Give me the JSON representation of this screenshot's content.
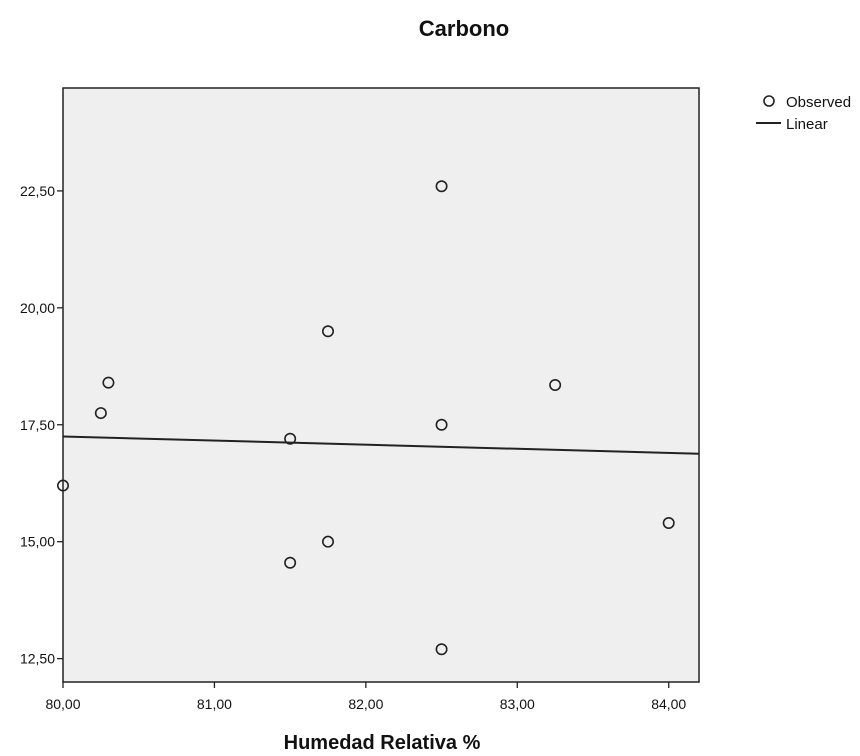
{
  "chart_data": {
    "type": "scatter",
    "title": "Carbono",
    "xlabel": "Humedad Relativa %",
    "ylabel": "",
    "xlim": [
      80.0,
      84.2
    ],
    "ylim": [
      12.0,
      24.7
    ],
    "x_ticks": [
      80,
      81,
      82,
      83,
      84
    ],
    "x_tick_labels": [
      "80,00",
      "81,00",
      "82,00",
      "83,00",
      "84,00"
    ],
    "y_ticks": [
      12.5,
      15,
      17.5,
      20,
      22.5
    ],
    "y_tick_labels": [
      "12,50",
      "15,00",
      "17,50",
      "20,00",
      "22,50"
    ],
    "grid": false,
    "legend_position": "top-right",
    "series": [
      {
        "name": "Observed",
        "kind": "points",
        "x": [
          80.0,
          80.25,
          80.3,
          81.5,
          81.5,
          81.75,
          81.75,
          82.5,
          82.5,
          82.5,
          83.25,
          84.0
        ],
        "y": [
          16.2,
          17.75,
          18.4,
          17.2,
          14.55,
          19.5,
          15.0,
          22.6,
          17.5,
          12.7,
          18.35,
          15.4
        ]
      },
      {
        "name": "Linear",
        "kind": "line",
        "x": [
          80.0,
          84.2
        ],
        "y": [
          17.25,
          16.88
        ]
      }
    ]
  },
  "colors": {
    "plot_background": "#efefef",
    "marker_stroke": "#222222",
    "line": "#222222"
  }
}
